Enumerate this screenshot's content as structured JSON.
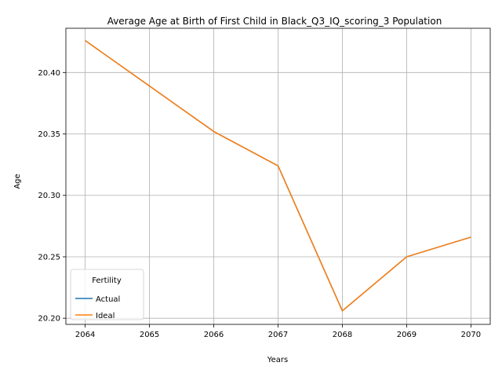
{
  "chart_data": {
    "type": "line",
    "title": "Average Age at Birth of First Child in Black_Q3_IQ_scoring_3 Population",
    "xlabel": "Years",
    "ylabel": "Age",
    "x": [
      2064,
      2065,
      2066,
      2067,
      2068,
      2069,
      2070
    ],
    "xlim": [
      2063.7,
      2070.3
    ],
    "ylim": [
      20.195,
      20.436
    ],
    "x_ticks": [
      "2064",
      "2065",
      "2066",
      "2067",
      "2068",
      "2069",
      "2070"
    ],
    "y_ticks": [
      "20.20",
      "20.25",
      "20.30",
      "20.35",
      "20.40"
    ],
    "y_tick_values": [
      20.2,
      20.25,
      20.3,
      20.35,
      20.4
    ],
    "grid": true,
    "legend": {
      "title": "Fertility",
      "placement": "lower-left"
    },
    "series": [
      {
        "name": "Actual",
        "color": "#1f77b4",
        "values": [
          20.426,
          20.389,
          20.352,
          20.324,
          20.206,
          20.25,
          20.266
        ]
      },
      {
        "name": "Ideal",
        "color": "#ff7f0e",
        "values": [
          20.426,
          20.389,
          20.352,
          20.324,
          20.206,
          20.25,
          20.266
        ]
      }
    ]
  }
}
